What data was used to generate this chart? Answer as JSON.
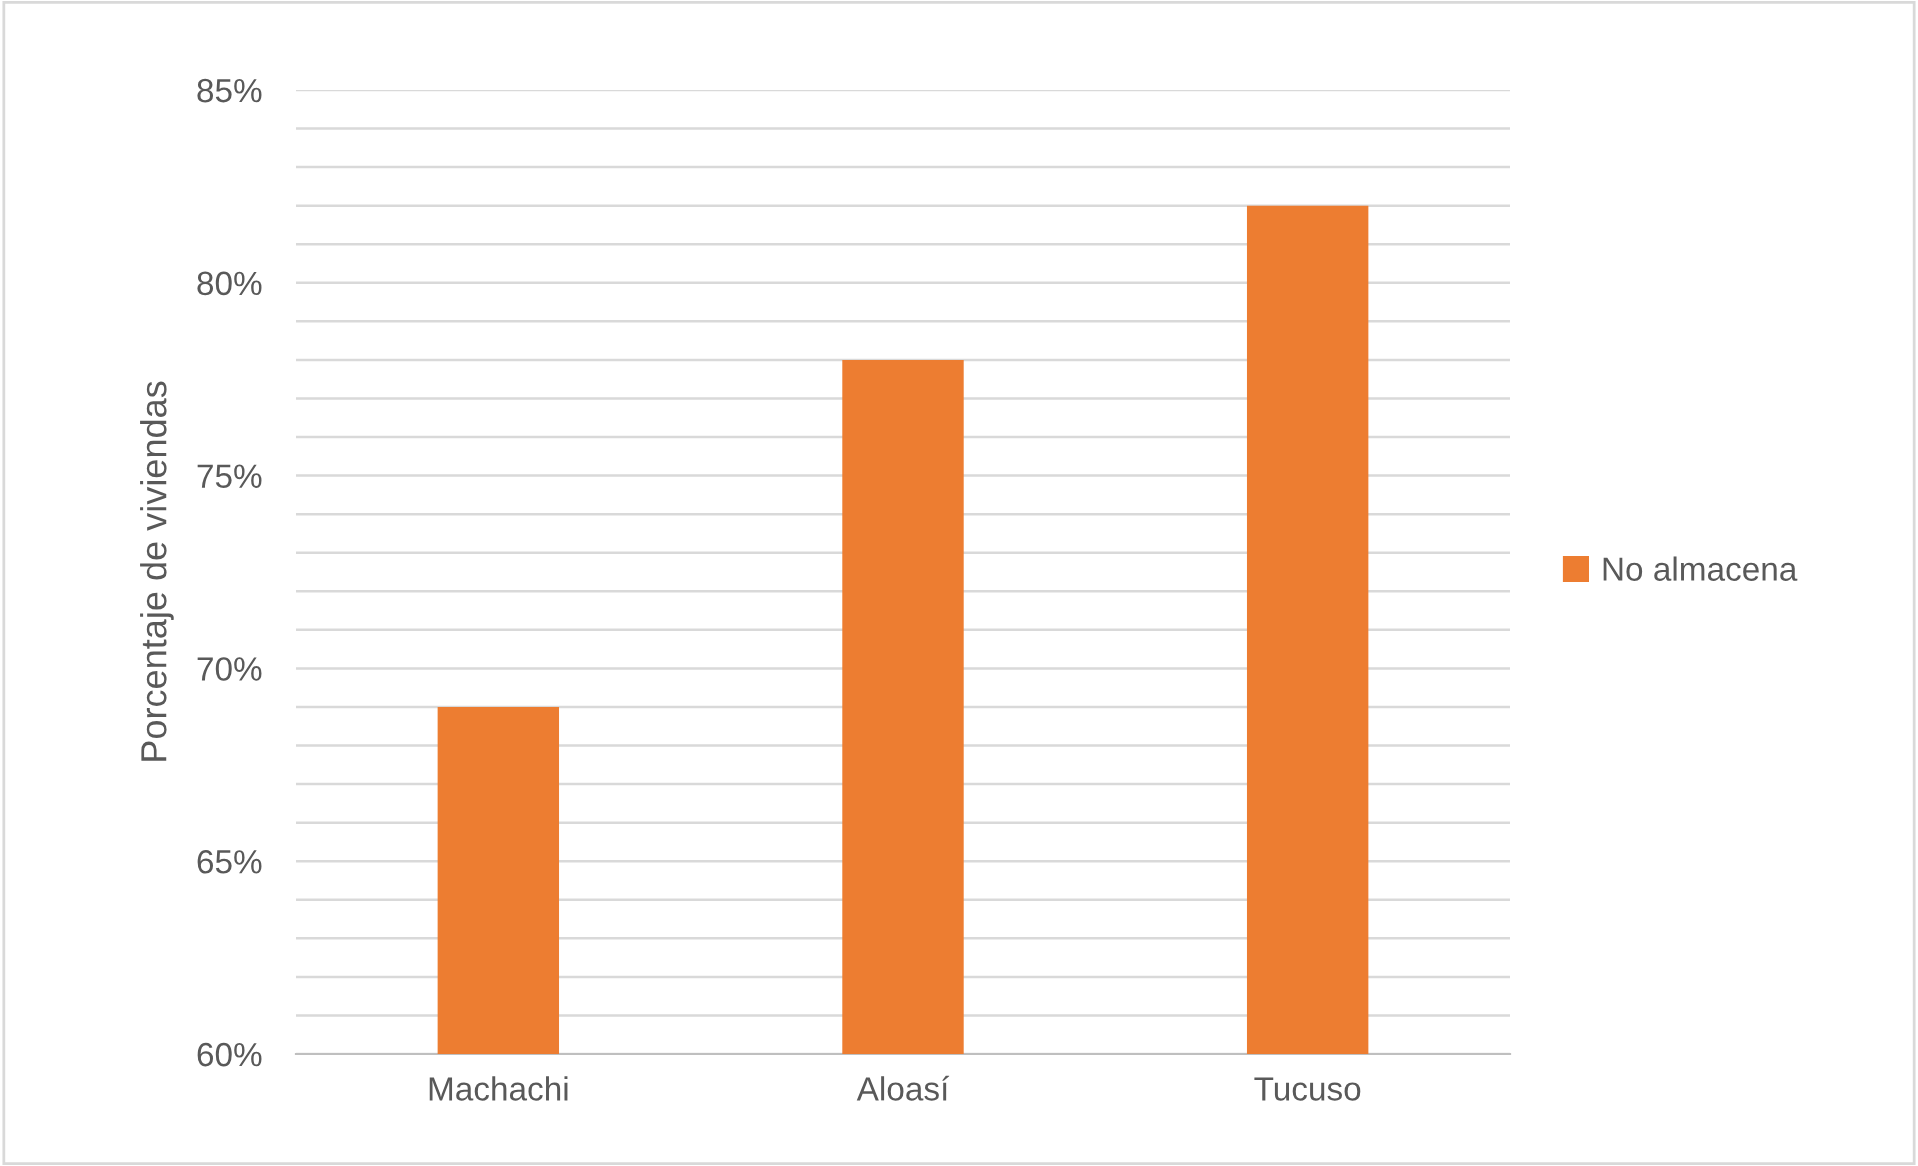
{
  "chart_data": {
    "type": "bar",
    "ylabel": "Porcentaje de viviendas",
    "categories": [
      "Machachi",
      "Aloasí",
      "Tucuso"
    ],
    "series": [
      {
        "name": "No almacena",
        "color": "#ed7d31",
        "values": [
          69,
          78,
          82
        ]
      }
    ],
    "ylim": [
      60,
      85
    ],
    "yticks": [
      {
        "value": 60,
        "label": "60%"
      },
      {
        "value": 61,
        "label": null
      },
      {
        "value": 62,
        "label": null
      },
      {
        "value": 63,
        "label": null
      },
      {
        "value": 64,
        "label": null
      },
      {
        "value": 65,
        "label": "65%"
      },
      {
        "value": 66,
        "label": null
      },
      {
        "value": 67,
        "label": null
      },
      {
        "value": 68,
        "label": null
      },
      {
        "value": 69,
        "label": null
      },
      {
        "value": 70,
        "label": "70%"
      },
      {
        "value": 71,
        "label": null
      },
      {
        "value": 72,
        "label": null
      },
      {
        "value": 73,
        "label": null
      },
      {
        "value": 74,
        "label": null
      },
      {
        "value": 75,
        "label": "75%"
      },
      {
        "value": 76,
        "label": null
      },
      {
        "value": 77,
        "label": null
      },
      {
        "value": 78,
        "label": null
      },
      {
        "value": 79,
        "label": null
      },
      {
        "value": 80,
        "label": "80%"
      },
      {
        "value": 81,
        "label": null
      },
      {
        "value": 82,
        "label": null
      },
      {
        "value": 83,
        "label": null
      },
      {
        "value": 84,
        "label": null
      },
      {
        "value": 85,
        "label": "85%"
      }
    ],
    "grid": "y",
    "legend": "right"
  }
}
